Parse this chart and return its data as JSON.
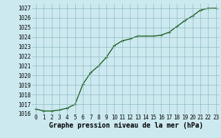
{
  "x": [
    0,
    1,
    2,
    3,
    4,
    5,
    6,
    7,
    8,
    9,
    10,
    11,
    12,
    13,
    14,
    15,
    16,
    17,
    18,
    19,
    20,
    21,
    22,
    23
  ],
  "y": [
    1016.5,
    1016.3,
    1016.3,
    1016.4,
    1016.6,
    1017.0,
    1019.1,
    1020.3,
    1021.0,
    1021.9,
    1023.1,
    1023.6,
    1023.8,
    1024.1,
    1024.1,
    1024.1,
    1024.2,
    1024.5,
    1025.1,
    1025.7,
    1026.2,
    1026.8,
    1027.0,
    1027.0
  ],
  "ylim": [
    1016,
    1027.5
  ],
  "yticks": [
    1016,
    1017,
    1018,
    1019,
    1020,
    1021,
    1022,
    1023,
    1024,
    1025,
    1026,
    1027
  ],
  "xticks": [
    0,
    1,
    2,
    3,
    4,
    5,
    6,
    7,
    8,
    9,
    10,
    11,
    12,
    13,
    14,
    15,
    16,
    17,
    18,
    19,
    20,
    21,
    22,
    23
  ],
  "xlabel": "Graphe pression niveau de la mer (hPa)",
  "line_color": "#1a5c1a",
  "marker_color": "#1a5c1a",
  "bg_color": "#cce9f0",
  "grid_color": "#8fb8c0",
  "tick_label_fontsize": 5.5,
  "xlabel_fontsize": 7.0,
  "line_width": 1.0,
  "marker_size": 2.5
}
